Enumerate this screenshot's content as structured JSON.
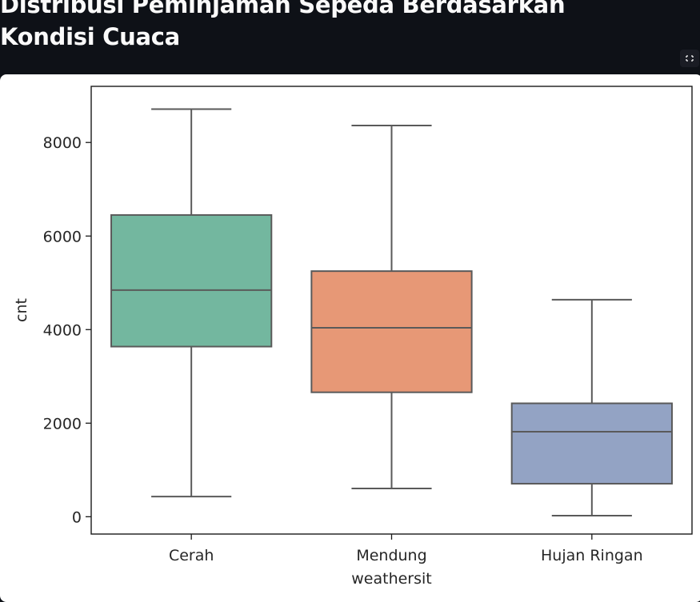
{
  "header": {
    "title": "Distribusi Peminjaman Sepeda Berdasarkan Kondisi Cuaca"
  },
  "toolbar": {
    "fullscreen_icon": "fullscreen-icon"
  },
  "chart_data": {
    "type": "box",
    "title": "",
    "xlabel": "weathersit",
    "ylabel": "cnt",
    "ylim": [
      -370,
      9200
    ],
    "yticks": [
      0,
      2000,
      4000,
      6000,
      8000
    ],
    "grid": false,
    "categories": [
      "Cerah",
      "Mendung",
      "Hujan Ringan"
    ],
    "boxes": [
      {
        "category": "Cerah",
        "whisker_low": 431,
        "q1": 3637,
        "median": 4844,
        "q3": 6450,
        "whisker_high": 8714,
        "color": "#73b79f"
      },
      {
        "category": "Mendung",
        "whisker_low": 605,
        "q1": 2660,
        "median": 4040,
        "q3": 5250,
        "whisker_high": 8362,
        "color": "#e79876"
      },
      {
        "category": "Hujan Ringan",
        "whisker_low": 22,
        "q1": 706,
        "median": 1817,
        "q3": 2424,
        "whisker_high": 4639,
        "color": "#93a3c4"
      }
    ],
    "edge_color": "#5a5a5a"
  }
}
